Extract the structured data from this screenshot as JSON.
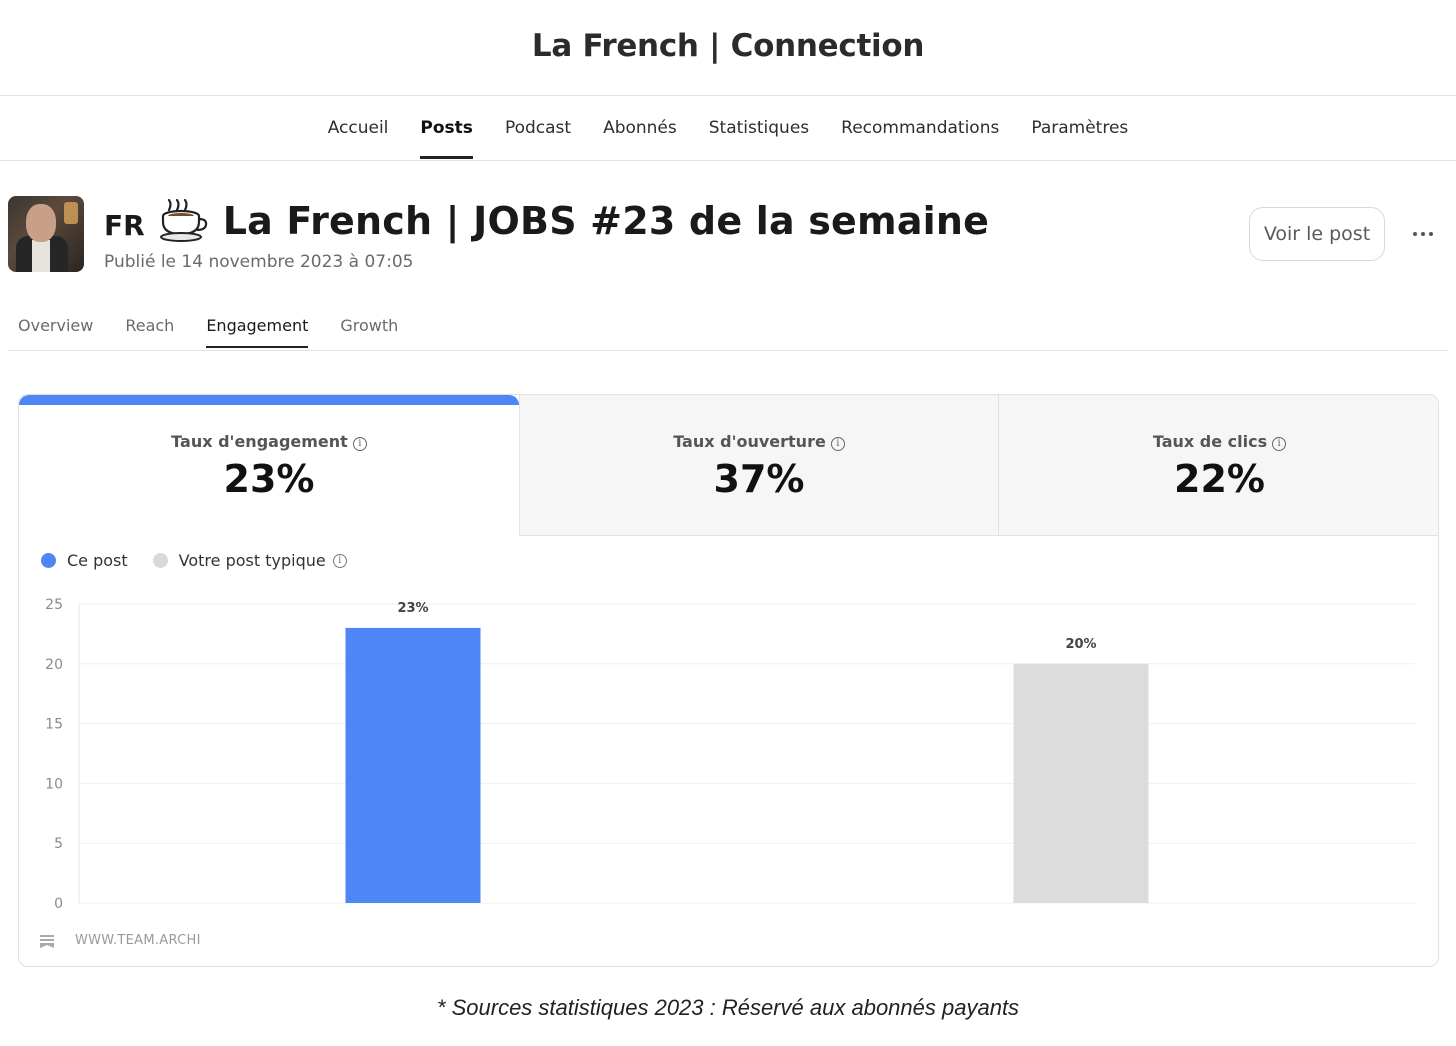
{
  "site": {
    "title": "La French | Connection"
  },
  "main_nav": {
    "items": [
      "Accueil",
      "Posts",
      "Podcast",
      "Abonnés",
      "Statistiques",
      "Recommandations",
      "Paramètres"
    ],
    "active": "Posts"
  },
  "post": {
    "lang": "FR",
    "icon": "coffee-cup-icon",
    "title": "La French | JOBS #23 de la semaine",
    "date": "Publié le 14 novembre 2023 à 07:05",
    "view_button": "Voir le post",
    "more_icon": "more-horizontal-icon"
  },
  "sub_tabs": {
    "items": [
      "Overview",
      "Reach",
      "Engagement",
      "Growth"
    ],
    "active": "Engagement"
  },
  "metrics": [
    {
      "label": "Taux d'engagement",
      "value": "23%",
      "active": true
    },
    {
      "label": "Taux d'ouverture",
      "value": "37%",
      "active": false
    },
    {
      "label": "Taux de clics",
      "value": "22%",
      "active": false
    }
  ],
  "legend": {
    "this_post": "Ce post",
    "typical_post": "Votre post typique"
  },
  "colors": {
    "accent_blue": "#4f86f7",
    "typical_gray": "#dcdcdc",
    "legend_gray": "#d9d9d9"
  },
  "chart_data": {
    "type": "bar",
    "categories": [
      "Ce post",
      "Votre post typique"
    ],
    "values": [
      23,
      20
    ],
    "data_labels": [
      "23%",
      "20%"
    ],
    "colors": [
      "#4f86f7",
      "#dcdcdc"
    ],
    "ylim": [
      0,
      25
    ],
    "yticks": [
      0,
      5,
      10,
      15,
      20,
      25
    ],
    "grid": true
  },
  "watermark": {
    "text": "WWW.TEAM.ARCHI",
    "icon": "bookmark-icon"
  },
  "footnote": "* Sources statistiques 2023 : Réservé aux abonnés payants"
}
